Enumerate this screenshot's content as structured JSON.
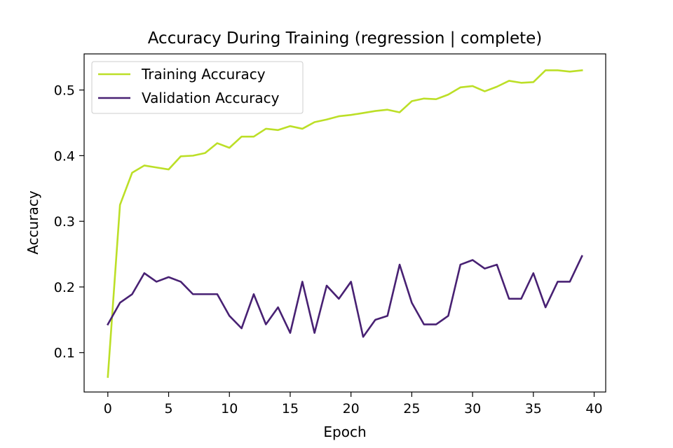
{
  "chart_data": {
    "type": "line",
    "title": "Accuracy During Training (regression | complete)",
    "xlabel": "Epoch",
    "ylabel": "Accuracy",
    "xlim": [
      -1.95,
      40.95
    ],
    "ylim": [
      0.04,
      0.555
    ],
    "xticks": [
      0,
      5,
      10,
      15,
      20,
      25,
      30,
      35,
      40
    ],
    "yticks": [
      0.1,
      0.2,
      0.3,
      0.4,
      0.5
    ],
    "grid": false,
    "legend": "top-left",
    "x": [
      0,
      1,
      2,
      3,
      4,
      5,
      6,
      7,
      8,
      9,
      10,
      11,
      12,
      13,
      14,
      15,
      16,
      17,
      18,
      19,
      20,
      21,
      22,
      23,
      24,
      25,
      26,
      27,
      28,
      29,
      30,
      31,
      32,
      33,
      34,
      35,
      36,
      37,
      38,
      39
    ],
    "series": [
      {
        "name": "Training Accuracy",
        "color": "#bcdf27",
        "values": [
          0.063,
          0.325,
          0.374,
          0.385,
          0.382,
          0.379,
          0.399,
          0.4,
          0.404,
          0.419,
          0.412,
          0.429,
          0.429,
          0.441,
          0.439,
          0.445,
          0.441,
          0.451,
          0.455,
          0.46,
          0.462,
          0.465,
          0.468,
          0.47,
          0.466,
          0.483,
          0.487,
          0.486,
          0.493,
          0.504,
          0.506,
          0.498,
          0.505,
          0.514,
          0.511,
          0.512,
          0.53,
          0.53,
          0.528,
          0.53
        ]
      },
      {
        "name": "Validation Accuracy",
        "color": "#482173",
        "values": [
          0.143,
          0.176,
          0.189,
          0.221,
          0.208,
          0.215,
          0.208,
          0.189,
          0.189,
          0.189,
          0.156,
          0.137,
          0.189,
          0.143,
          0.169,
          0.13,
          0.208,
          0.13,
          0.202,
          0.182,
          0.208,
          0.124,
          0.15,
          0.156,
          0.234,
          0.176,
          0.143,
          0.143,
          0.156,
          0.234,
          0.241,
          0.228,
          0.234,
          0.182,
          0.182,
          0.221,
          0.169,
          0.208,
          0.208,
          0.247
        ]
      }
    ]
  }
}
